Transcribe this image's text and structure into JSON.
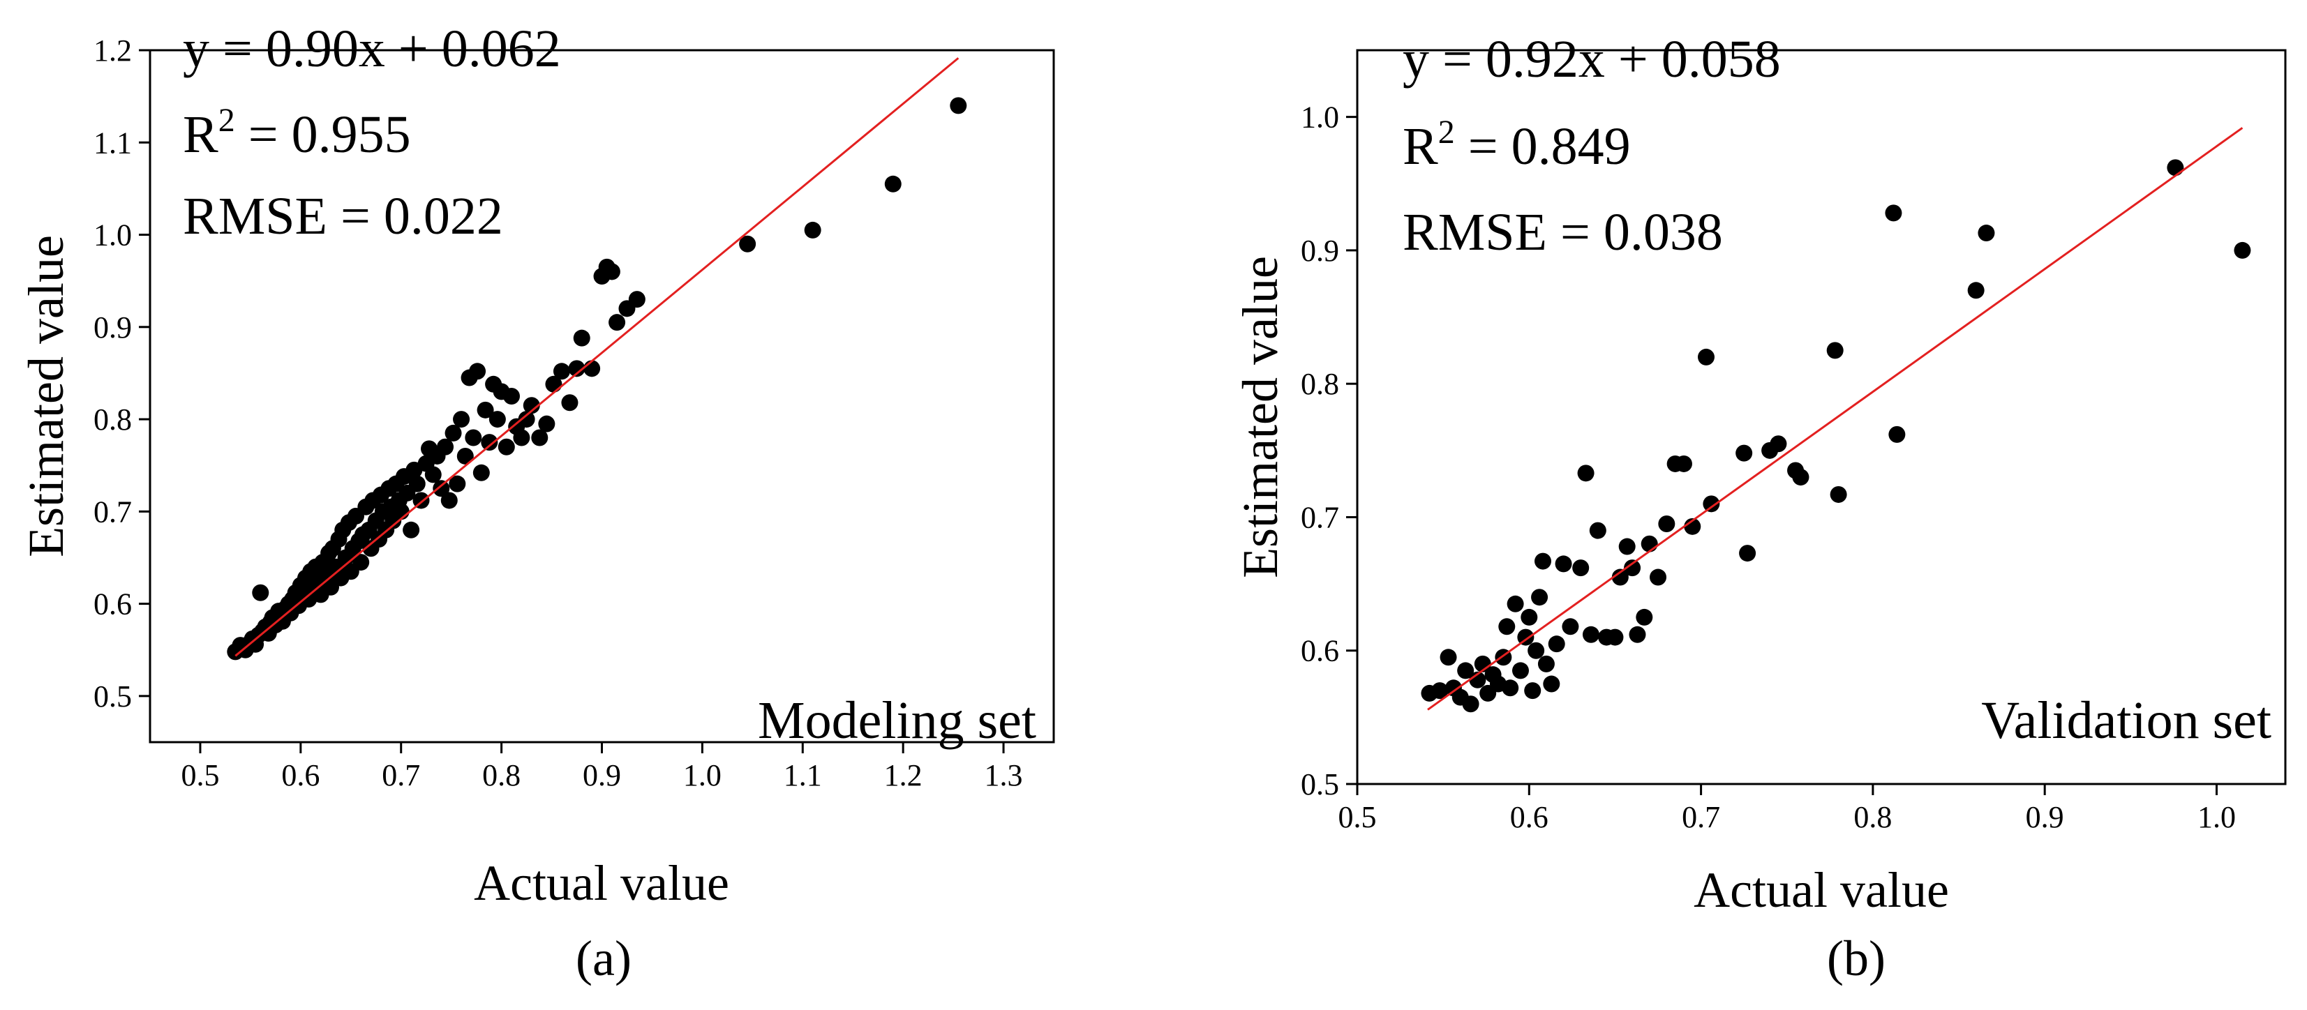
{
  "chart_data": [
    {
      "type": "scatter",
      "panel_label": "(a)",
      "set_label": "Modeling set",
      "xlabel": "Actual value",
      "ylabel": "Estimated value",
      "xlim": [
        0.45,
        1.35
      ],
      "ylim": [
        0.45,
        1.2
      ],
      "xticks": [
        "0.5",
        "0.6",
        "0.7",
        "0.8",
        "0.9",
        "1.0",
        "1.1",
        "1.2",
        "1.3"
      ],
      "yticks": [
        "0.5",
        "0.6",
        "0.7",
        "0.8",
        "0.9",
        "1.0",
        "1.1",
        "1.2"
      ],
      "equation": "y = 0.90x + 0.062",
      "r2_prefix": "R",
      "r2_sup": "2",
      "r2_value": " = 0.955",
      "rmse": "RMSE = 0.022",
      "fit": {
        "slope": 0.9,
        "intercept": 0.062,
        "x_range": [
          0.535,
          1.255
        ],
        "color": "#e32020"
      },
      "marker_color": "#000000",
      "points": [
        [
          0.535,
          0.548
        ],
        [
          0.54,
          0.555
        ],
        [
          0.545,
          0.55
        ],
        [
          0.55,
          0.558
        ],
        [
          0.552,
          0.562
        ],
        [
          0.555,
          0.556
        ],
        [
          0.558,
          0.566
        ],
        [
          0.56,
          0.612
        ],
        [
          0.562,
          0.57
        ],
        [
          0.565,
          0.575
        ],
        [
          0.568,
          0.568
        ],
        [
          0.57,
          0.58
        ],
        [
          0.572,
          0.585
        ],
        [
          0.575,
          0.577
        ],
        [
          0.578,
          0.592
        ],
        [
          0.58,
          0.588
        ],
        [
          0.582,
          0.581
        ],
        [
          0.585,
          0.595
        ],
        [
          0.588,
          0.6
        ],
        [
          0.59,
          0.59
        ],
        [
          0.592,
          0.605
        ],
        [
          0.595,
          0.612
        ],
        [
          0.598,
          0.598
        ],
        [
          0.6,
          0.62
        ],
        [
          0.602,
          0.61
        ],
        [
          0.605,
          0.628
        ],
        [
          0.608,
          0.605
        ],
        [
          0.61,
          0.635
        ],
        [
          0.612,
          0.618
        ],
        [
          0.615,
          0.64
        ],
        [
          0.618,
          0.625
        ],
        [
          0.62,
          0.61
        ],
        [
          0.622,
          0.645
        ],
        [
          0.625,
          0.632
        ],
        [
          0.628,
          0.655
        ],
        [
          0.63,
          0.618
        ],
        [
          0.632,
          0.66
        ],
        [
          0.635,
          0.64
        ],
        [
          0.638,
          0.67
        ],
        [
          0.64,
          0.628
        ],
        [
          0.642,
          0.68
        ],
        [
          0.645,
          0.65
        ],
        [
          0.648,
          0.688
        ],
        [
          0.65,
          0.635
        ],
        [
          0.652,
          0.66
        ],
        [
          0.655,
          0.695
        ],
        [
          0.658,
          0.668
        ],
        [
          0.66,
          0.645
        ],
        [
          0.662,
          0.675
        ],
        [
          0.665,
          0.705
        ],
        [
          0.668,
          0.68
        ],
        [
          0.67,
          0.66
        ],
        [
          0.672,
          0.712
        ],
        [
          0.675,
          0.69
        ],
        [
          0.678,
          0.67
        ],
        [
          0.68,
          0.718
        ],
        [
          0.682,
          0.7
        ],
        [
          0.685,
          0.68
        ],
        [
          0.688,
          0.725
        ],
        [
          0.69,
          0.705
        ],
        [
          0.692,
          0.69
        ],
        [
          0.695,
          0.73
        ],
        [
          0.698,
          0.712
        ],
        [
          0.7,
          0.7
        ],
        [
          0.703,
          0.738
        ],
        [
          0.706,
          0.72
        ],
        [
          0.71,
          0.68
        ],
        [
          0.713,
          0.745
        ],
        [
          0.716,
          0.73
        ],
        [
          0.72,
          0.712
        ],
        [
          0.725,
          0.752
        ],
        [
          0.728,
          0.768
        ],
        [
          0.732,
          0.74
        ],
        [
          0.736,
          0.76
        ],
        [
          0.74,
          0.725
        ],
        [
          0.744,
          0.77
        ],
        [
          0.748,
          0.712
        ],
        [
          0.752,
          0.785
        ],
        [
          0.756,
          0.73
        ],
        [
          0.76,
          0.8
        ],
        [
          0.764,
          0.76
        ],
        [
          0.768,
          0.845
        ],
        [
          0.772,
          0.78
        ],
        [
          0.776,
          0.852
        ],
        [
          0.78,
          0.742
        ],
        [
          0.784,
          0.81
        ],
        [
          0.788,
          0.775
        ],
        [
          0.792,
          0.838
        ],
        [
          0.796,
          0.8
        ],
        [
          0.8,
          0.83
        ],
        [
          0.805,
          0.77
        ],
        [
          0.81,
          0.825
        ],
        [
          0.815,
          0.792
        ],
        [
          0.82,
          0.78
        ],
        [
          0.825,
          0.8
        ],
        [
          0.83,
          0.815
        ],
        [
          0.838,
          0.78
        ],
        [
          0.845,
          0.795
        ],
        [
          0.852,
          0.838
        ],
        [
          0.86,
          0.852
        ],
        [
          0.868,
          0.818
        ],
        [
          0.875,
          0.855
        ],
        [
          0.88,
          0.888
        ],
        [
          0.89,
          0.855
        ],
        [
          0.9,
          0.955
        ],
        [
          0.905,
          0.965
        ],
        [
          0.91,
          0.96
        ],
        [
          0.915,
          0.905
        ],
        [
          0.925,
          0.92
        ],
        [
          0.935,
          0.93
        ],
        [
          1.045,
          0.99
        ],
        [
          1.11,
          1.005
        ],
        [
          1.19,
          1.055
        ],
        [
          1.255,
          1.14
        ]
      ]
    },
    {
      "type": "scatter",
      "panel_label": "(b)",
      "set_label": "Validation set",
      "xlabel": "Actual value",
      "ylabel": "Estimated value",
      "xlim": [
        0.5,
        1.04
      ],
      "ylim": [
        0.5,
        1.05
      ],
      "xticks": [
        "0.5",
        "0.6",
        "0.7",
        "0.8",
        "0.9",
        "1.0"
      ],
      "yticks": [
        "0.5",
        "0.6",
        "0.7",
        "0.8",
        "0.9",
        "1.0"
      ],
      "equation": "y = 0.92x + 0.058",
      "r2_prefix": "R",
      "r2_sup": "2",
      "r2_value": " = 0.849",
      "rmse": "RMSE = 0.038",
      "fit": {
        "slope": 0.92,
        "intercept": 0.058,
        "x_range": [
          0.541,
          1.015
        ],
        "color": "#e32020"
      },
      "marker_color": "#000000",
      "points": [
        [
          0.542,
          0.568
        ],
        [
          0.548,
          0.57
        ],
        [
          0.553,
          0.595
        ],
        [
          0.556,
          0.572
        ],
        [
          0.56,
          0.565
        ],
        [
          0.563,
          0.585
        ],
        [
          0.566,
          0.56
        ],
        [
          0.57,
          0.578
        ],
        [
          0.573,
          0.59
        ],
        [
          0.576,
          0.568
        ],
        [
          0.579,
          0.582
        ],
        [
          0.582,
          0.575
        ],
        [
          0.585,
          0.595
        ],
        [
          0.587,
          0.618
        ],
        [
          0.589,
          0.572
        ],
        [
          0.592,
          0.635
        ],
        [
          0.595,
          0.585
        ],
        [
          0.598,
          0.61
        ],
        [
          0.6,
          0.625
        ],
        [
          0.602,
          0.57
        ],
        [
          0.604,
          0.6
        ],
        [
          0.606,
          0.64
        ],
        [
          0.608,
          0.667
        ],
        [
          0.61,
          0.59
        ],
        [
          0.613,
          0.575
        ],
        [
          0.616,
          0.605
        ],
        [
          0.62,
          0.665
        ],
        [
          0.624,
          0.618
        ],
        [
          0.63,
          0.662
        ],
        [
          0.633,
          0.733
        ],
        [
          0.636,
          0.612
        ],
        [
          0.64,
          0.69
        ],
        [
          0.645,
          0.61
        ],
        [
          0.65,
          0.61
        ],
        [
          0.653,
          0.655
        ],
        [
          0.657,
          0.678
        ],
        [
          0.66,
          0.662
        ],
        [
          0.663,
          0.612
        ],
        [
          0.667,
          0.625
        ],
        [
          0.67,
          0.68
        ],
        [
          0.675,
          0.655
        ],
        [
          0.68,
          0.695
        ],
        [
          0.685,
          0.74
        ],
        [
          0.69,
          0.74
        ],
        [
          0.695,
          0.693
        ],
        [
          0.703,
          0.82
        ],
        [
          0.706,
          0.71
        ],
        [
          0.725,
          0.748
        ],
        [
          0.727,
          0.673
        ],
        [
          0.74,
          0.75
        ],
        [
          0.745,
          0.755
        ],
        [
          0.755,
          0.735
        ],
        [
          0.758,
          0.73
        ],
        [
          0.778,
          0.825
        ],
        [
          0.78,
          0.717
        ],
        [
          0.812,
          0.928
        ],
        [
          0.814,
          0.762
        ],
        [
          0.86,
          0.87
        ],
        [
          0.866,
          0.913
        ],
        [
          0.976,
          0.962
        ],
        [
          1.015,
          0.9
        ]
      ]
    }
  ]
}
